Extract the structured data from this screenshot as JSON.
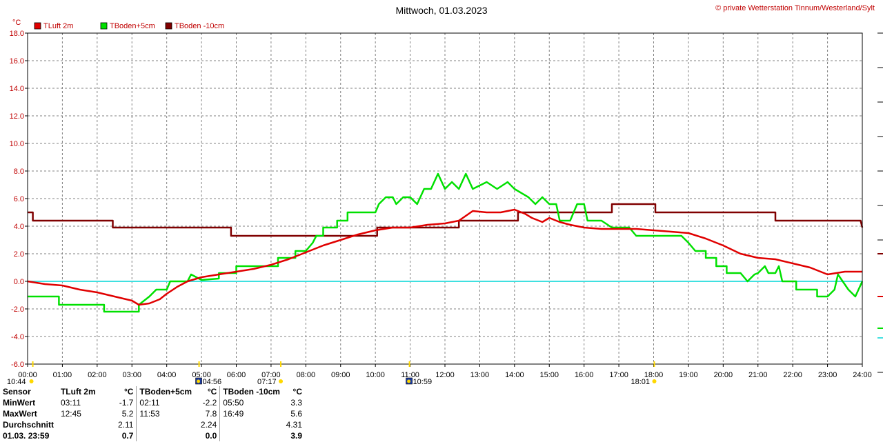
{
  "header": {
    "title": "Mittwoch, 01.03.2023",
    "copyright": "© private Wetterstation Tinnum/Westerland/Sylt",
    "unit": "°C"
  },
  "colors": {
    "tluft": "#e00000",
    "tboden5": "#00e000",
    "tboden10": "#800000",
    "zero": "#40e0e0",
    "grid": "#808080",
    "sun": "#ffd800"
  },
  "chart_data": {
    "type": "line",
    "title": "Mittwoch, 01.03.2023",
    "xlabel": "",
    "ylabel": "°C",
    "xlim": [
      0,
      24
    ],
    "ylim": [
      -6,
      18
    ],
    "grid": true,
    "legend_position": "top-left",
    "x_ticks": [
      "00:00",
      "01:00",
      "02:00",
      "03:00",
      "04:00",
      "05:00",
      "06:00",
      "07:00",
      "08:00",
      "09:00",
      "10:00",
      "11:00",
      "12:00",
      "13:00",
      "14:00",
      "15:00",
      "16:00",
      "17:00",
      "18:00",
      "19:00",
      "20:00",
      "21:00",
      "22:00",
      "23:00",
      "24:00"
    ],
    "y_ticks": [
      "18.0",
      "16.0",
      "14.0",
      "12.0",
      "10.0",
      "8.0",
      "6.0",
      "4.0",
      "2.0",
      "0.0",
      "-2.0",
      "-4.0",
      "-6.0"
    ],
    "reference_line": 0,
    "series": [
      {
        "name": "TLuft 2m",
        "color": "#e00000",
        "points": [
          [
            0,
            0
          ],
          [
            0.5,
            -0.2
          ],
          [
            1,
            -0.3
          ],
          [
            1.5,
            -0.6
          ],
          [
            2,
            -0.8
          ],
          [
            2.5,
            -1.1
          ],
          [
            3,
            -1.4
          ],
          [
            3.2,
            -1.7
          ],
          [
            3.5,
            -1.6
          ],
          [
            3.8,
            -1.3
          ],
          [
            4,
            -0.9
          ],
          [
            4.3,
            -0.4
          ],
          [
            4.6,
            0
          ],
          [
            5,
            0.3
          ],
          [
            5.5,
            0.5
          ],
          [
            6,
            0.7
          ],
          [
            6.5,
            0.9
          ],
          [
            7,
            1.2
          ],
          [
            7.5,
            1.6
          ],
          [
            8,
            2.1
          ],
          [
            8.5,
            2.6
          ],
          [
            9,
            3
          ],
          [
            9.5,
            3.4
          ],
          [
            10,
            3.7
          ],
          [
            10.5,
            3.9
          ],
          [
            11,
            3.9
          ],
          [
            11.5,
            4.1
          ],
          [
            12,
            4.2
          ],
          [
            12.4,
            4.4
          ],
          [
            12.8,
            5.1
          ],
          [
            13.2,
            5
          ],
          [
            13.6,
            5
          ],
          [
            14,
            5.2
          ],
          [
            14.3,
            4.9
          ],
          [
            14.5,
            4.6
          ],
          [
            14.8,
            4.3
          ],
          [
            15,
            4.6
          ],
          [
            15.3,
            4.3
          ],
          [
            15.6,
            4.1
          ],
          [
            16,
            3.9
          ],
          [
            16.5,
            3.8
          ],
          [
            17,
            3.8
          ],
          [
            17.5,
            3.8
          ],
          [
            18,
            3.7
          ],
          [
            18.5,
            3.6
          ],
          [
            19,
            3.5
          ],
          [
            19.5,
            3.1
          ],
          [
            20,
            2.6
          ],
          [
            20.5,
            2
          ],
          [
            21,
            1.7
          ],
          [
            21.5,
            1.6
          ],
          [
            22,
            1.3
          ],
          [
            22.5,
            1
          ],
          [
            23,
            0.5
          ],
          [
            23.5,
            0.7
          ],
          [
            24,
            0.7
          ]
        ]
      },
      {
        "name": "TBoden+5cm",
        "color": "#00e000",
        "points": [
          [
            0,
            -1.1
          ],
          [
            0.9,
            -1.1
          ],
          [
            0.9,
            -1.7
          ],
          [
            2.2,
            -1.7
          ],
          [
            2.2,
            -2.2
          ],
          [
            3.2,
            -2.2
          ],
          [
            3.2,
            -1.7
          ],
          [
            3.5,
            -1.1
          ],
          [
            3.7,
            -0.6
          ],
          [
            4,
            -0.6
          ],
          [
            4.1,
            0
          ],
          [
            4.6,
            0
          ],
          [
            4.7,
            0.5
          ],
          [
            5,
            0.1
          ],
          [
            5.5,
            0.2
          ],
          [
            5.5,
            0.6
          ],
          [
            6,
            0.6
          ],
          [
            6,
            1.1
          ],
          [
            6.5,
            1.1
          ],
          [
            7.2,
            1.1
          ],
          [
            7.2,
            1.7
          ],
          [
            7.7,
            1.7
          ],
          [
            7.7,
            2.2
          ],
          [
            8,
            2.2
          ],
          [
            8.2,
            2.8
          ],
          [
            8.3,
            3.3
          ],
          [
            8.5,
            3.3
          ],
          [
            8.5,
            3.9
          ],
          [
            8.9,
            3.9
          ],
          [
            8.9,
            4.4
          ],
          [
            9.2,
            4.4
          ],
          [
            9.2,
            5
          ],
          [
            9.6,
            5
          ],
          [
            10,
            5
          ],
          [
            10.1,
            5.6
          ],
          [
            10.3,
            6.1
          ],
          [
            10.5,
            6.1
          ],
          [
            10.6,
            5.6
          ],
          [
            10.8,
            6.1
          ],
          [
            11,
            6.1
          ],
          [
            11.2,
            5.6
          ],
          [
            11.4,
            6.7
          ],
          [
            11.6,
            6.7
          ],
          [
            11.8,
            7.8
          ],
          [
            12,
            6.7
          ],
          [
            12.2,
            7.2
          ],
          [
            12.4,
            6.7
          ],
          [
            12.6,
            7.8
          ],
          [
            12.8,
            6.7
          ],
          [
            13.2,
            7.2
          ],
          [
            13.5,
            6.7
          ],
          [
            13.8,
            7.2
          ],
          [
            14,
            6.7
          ],
          [
            14.4,
            6.1
          ],
          [
            14.6,
            5.6
          ],
          [
            14.8,
            6.1
          ],
          [
            15,
            5.6
          ],
          [
            15.2,
            5.6
          ],
          [
            15.3,
            4.4
          ],
          [
            15.6,
            4.4
          ],
          [
            15.8,
            5.6
          ],
          [
            16,
            5.6
          ],
          [
            16.1,
            4.4
          ],
          [
            16.5,
            4.4
          ],
          [
            16.8,
            3.9
          ],
          [
            17.1,
            3.9
          ],
          [
            17.3,
            3.9
          ],
          [
            17.5,
            3.3
          ],
          [
            18,
            3.3
          ],
          [
            18.8,
            3.3
          ],
          [
            19,
            2.8
          ],
          [
            19.2,
            2.2
          ],
          [
            19.5,
            2.2
          ],
          [
            19.5,
            1.7
          ],
          [
            19.8,
            1.7
          ],
          [
            19.8,
            1.1
          ],
          [
            20.1,
            1.1
          ],
          [
            20.1,
            0.6
          ],
          [
            20.5,
            0.6
          ],
          [
            20.7,
            0
          ],
          [
            20.9,
            0.5
          ],
          [
            21,
            0.6
          ],
          [
            21.2,
            1.1
          ],
          [
            21.3,
            0.6
          ],
          [
            21.5,
            0.6
          ],
          [
            21.6,
            1.1
          ],
          [
            21.7,
            0
          ],
          [
            22.1,
            0
          ],
          [
            22.1,
            -0.6
          ],
          [
            22.7,
            -0.6
          ],
          [
            22.7,
            -1.1
          ],
          [
            23,
            -1.1
          ],
          [
            23.2,
            -0.6
          ],
          [
            23.3,
            0.5
          ],
          [
            23.6,
            -0.6
          ],
          [
            23.8,
            -1.1
          ],
          [
            24,
            0
          ]
        ]
      },
      {
        "name": "TBoden -10cm",
        "color": "#800000",
        "points": [
          [
            0,
            5
          ],
          [
            0.15,
            5
          ],
          [
            0.15,
            4.4
          ],
          [
            2.45,
            4.4
          ],
          [
            2.45,
            3.9
          ],
          [
            5.85,
            3.9
          ],
          [
            5.85,
            3.3
          ],
          [
            10.05,
            3.3
          ],
          [
            10.05,
            3.9
          ],
          [
            12.4,
            3.9
          ],
          [
            12.4,
            4.4
          ],
          [
            14.1,
            4.4
          ],
          [
            14.1,
            5
          ],
          [
            16.8,
            5
          ],
          [
            16.8,
            5.6
          ],
          [
            18.05,
            5.6
          ],
          [
            18.05,
            5
          ],
          [
            21.5,
            5
          ],
          [
            21.5,
            4.4
          ],
          [
            23.95,
            4.4
          ],
          [
            24,
            3.9
          ]
        ]
      }
    ],
    "sun_markers": [
      {
        "label": "10:44",
        "x": 0.15
      },
      {
        "label": "04:56",
        "x": 4.93
      },
      {
        "label": "07:17",
        "x": 7.28
      },
      {
        "label": "10:59",
        "x": 10.98
      },
      {
        "label": "18:01",
        "x": 18.02
      }
    ]
  },
  "stats": {
    "headers": [
      "Sensor",
      "TLuft 2m",
      "°C",
      "TBoden+5cm",
      "°C",
      "TBoden -10cm",
      "°C"
    ],
    "rows": [
      {
        "label": "MinWert",
        "t1": "03:11",
        "v1": "-1.7",
        "t2": "02:11",
        "v2": "-2.2",
        "t3": "05:50",
        "v3": "3.3"
      },
      {
        "label": "MaxWert",
        "t1": "12:45",
        "v1": "5.2",
        "t2": "11:53",
        "v2": "7.8",
        "t3": "16:49",
        "v3": "5.6"
      },
      {
        "label": "Durchschnitt",
        "t1": "",
        "v1": "2.11",
        "t2": "",
        "v2": "2.24",
        "t3": "",
        "v3": "4.31"
      },
      {
        "label": "01.03. 23:59",
        "t1": "",
        "v1": "0.7",
        "t2": "",
        "v2": "0.0",
        "t3": "",
        "v3": "3.9"
      }
    ]
  }
}
